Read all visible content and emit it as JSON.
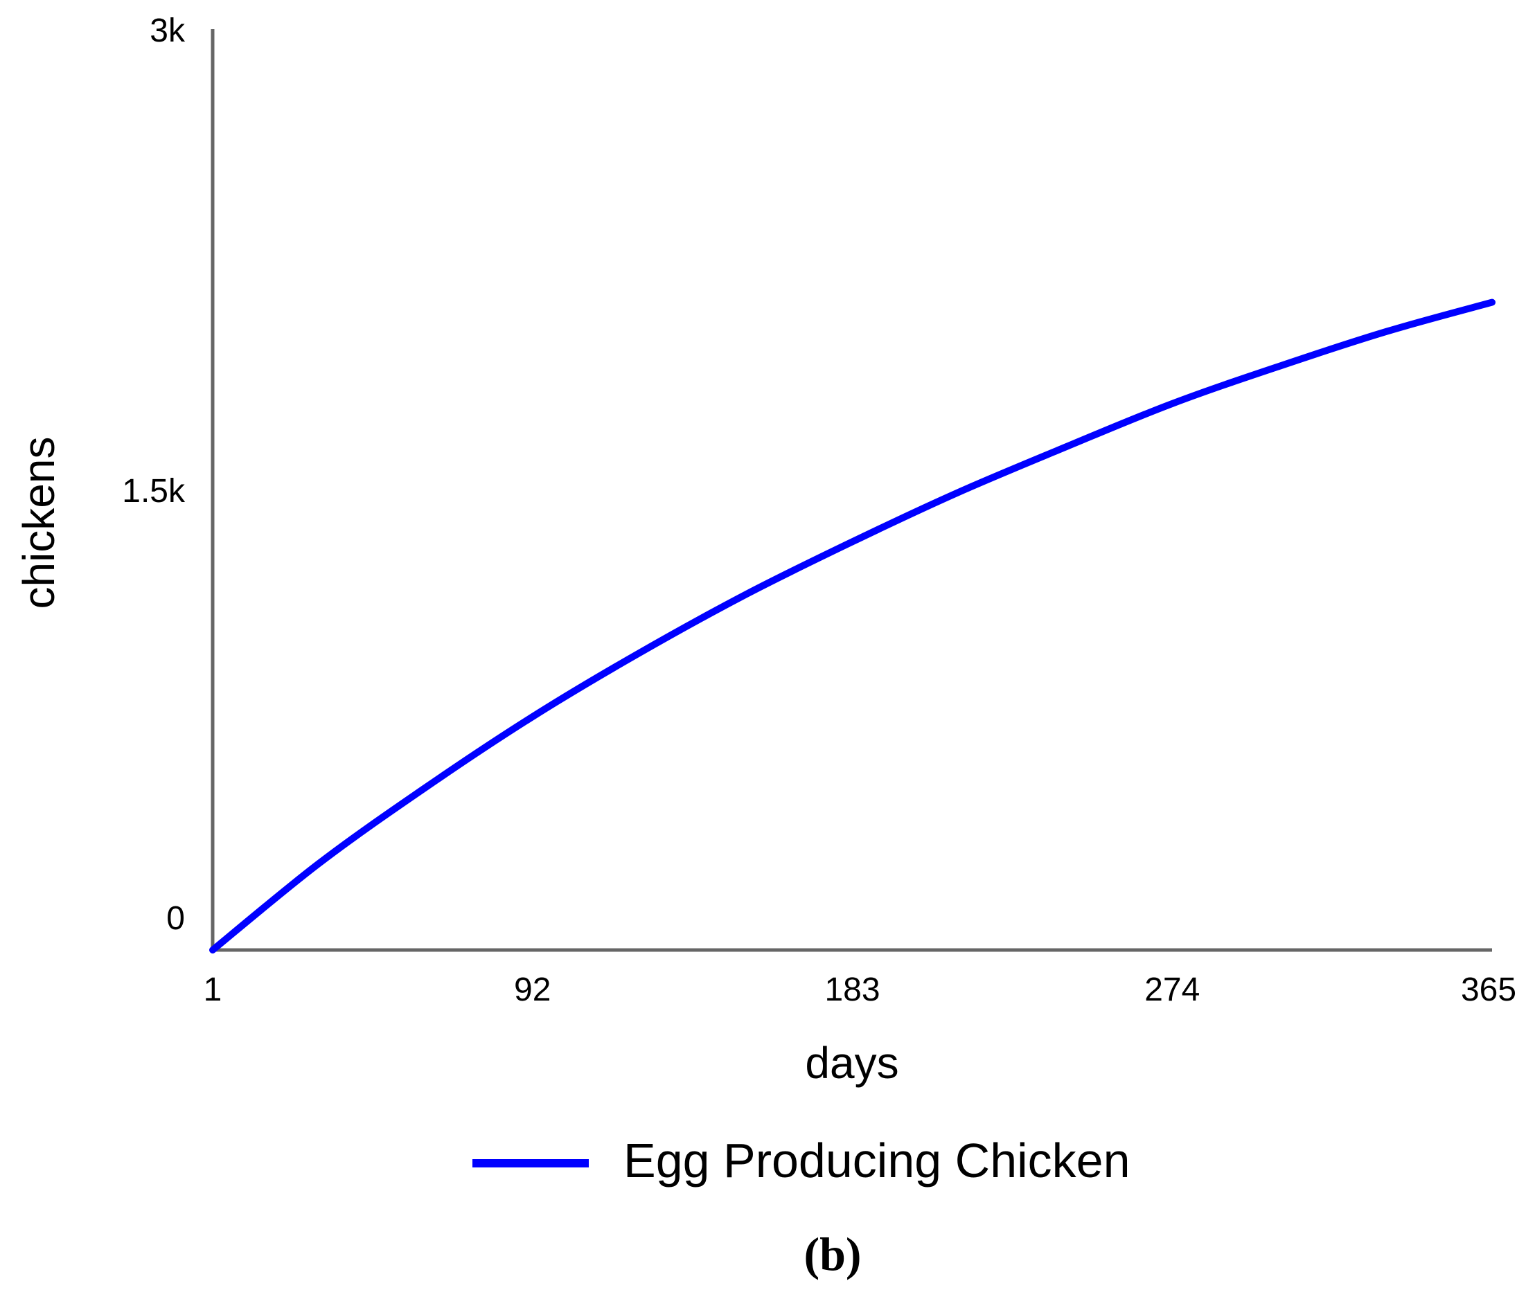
{
  "chart_data": {
    "type": "line",
    "panel_label": "(b)",
    "xlabel": "days",
    "ylabel": "chickens",
    "xlim": [
      1,
      365
    ],
    "ylim": [
      0,
      3000
    ],
    "x_ticks": [
      1,
      92,
      183,
      274,
      365
    ],
    "x_tick_labels": [
      "1",
      "92",
      "183",
      "274",
      "365"
    ],
    "y_ticks": [
      0,
      1500,
      3000
    ],
    "y_tick_labels": [
      "0",
      "1.5k",
      "3k"
    ],
    "grid": false,
    "legend_position": "bottom-center",
    "colors": {
      "series": "#0000ff",
      "axis": "#666666"
    },
    "series": [
      {
        "name": "Egg Producing Chicken",
        "x": [
          1,
          31,
          61,
          92,
          122,
          153,
          183,
          213,
          244,
          274,
          304,
          335,
          365
        ],
        "values": [
          0,
          280,
          525,
          760,
          965,
          1160,
          1330,
          1490,
          1640,
          1780,
          1900,
          2015,
          2110
        ]
      }
    ]
  }
}
